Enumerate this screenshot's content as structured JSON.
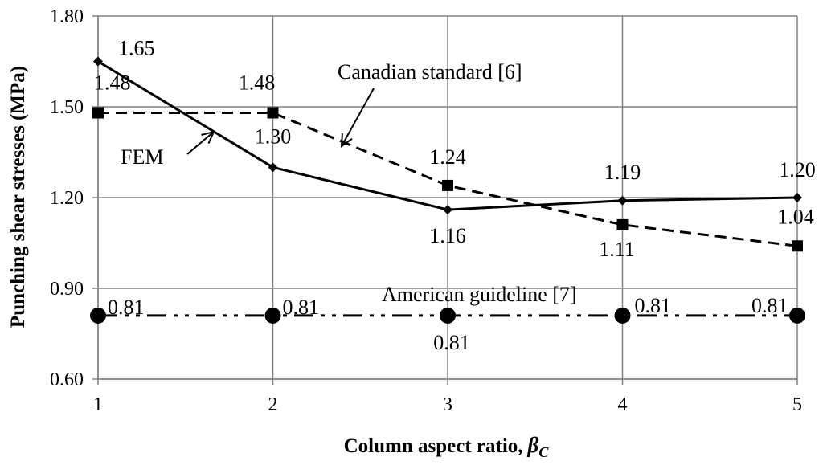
{
  "chart_data": {
    "type": "line",
    "xlabel": "Column aspect ratio,",
    "xlabel_symbol": "β",
    "xlabel_symbol_sub": "C",
    "ylabel": "Punching shear stresses (MPa)",
    "x": [
      1,
      2,
      3,
      4,
      5
    ],
    "xticks": [
      "1",
      "2",
      "3",
      "4",
      "5"
    ],
    "yticks": [
      "0.60",
      "0.90",
      "1.20",
      "1.50",
      "1.80"
    ],
    "ylim": [
      0.6,
      1.8
    ],
    "grid": true,
    "series": [
      {
        "name": "FEM",
        "values": [
          1.65,
          1.3,
          1.16,
          1.19,
          1.2
        ],
        "labels": [
          "1.65",
          "1.30",
          "1.16",
          "1.19",
          "1.20"
        ],
        "line": "solid",
        "marker": "diamond"
      },
      {
        "name": "Canadian standard [6]",
        "values": [
          1.48,
          1.48,
          1.24,
          1.11,
          1.04
        ],
        "labels": [
          "1.48",
          "1.48",
          "1.24",
          "1.11",
          "1.04"
        ],
        "line": "dashed",
        "marker": "square"
      },
      {
        "name": "American guideline [7]",
        "values": [
          0.81,
          0.81,
          0.81,
          0.81,
          0.81
        ],
        "labels": [
          "0.81",
          "0.81",
          "0.81",
          "0.81",
          "0.81"
        ],
        "line": "dash-dot-dot",
        "marker": "circle"
      }
    ],
    "colors": {
      "line": "#000000",
      "grid": "#808080"
    }
  }
}
